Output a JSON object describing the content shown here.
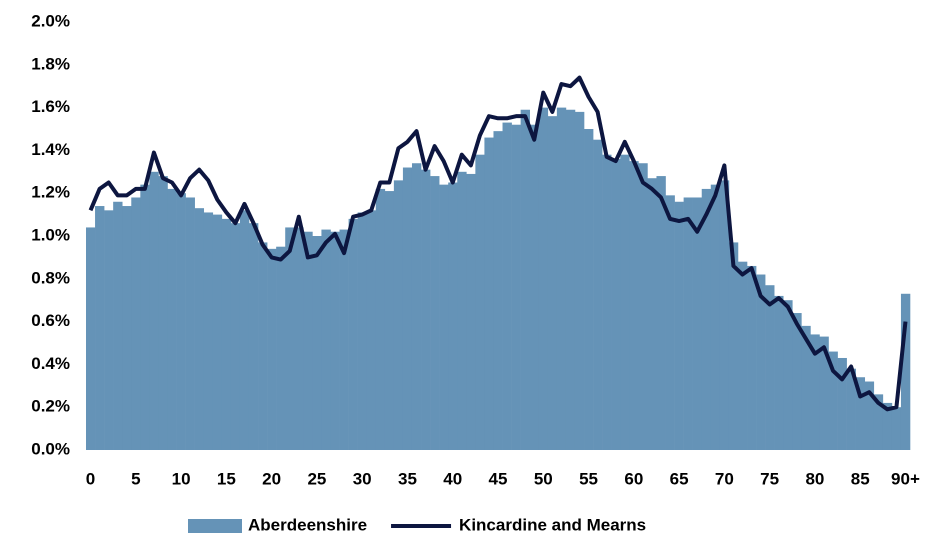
{
  "chart_data": {
    "type": "bar-line",
    "categories": [
      "0",
      null,
      null,
      null,
      null,
      "5",
      null,
      null,
      null,
      null,
      "10",
      null,
      null,
      null,
      null,
      "15",
      null,
      null,
      null,
      null,
      "20",
      null,
      null,
      null,
      null,
      "25",
      null,
      null,
      null,
      null,
      "30",
      null,
      null,
      null,
      null,
      "35",
      null,
      null,
      null,
      null,
      "40",
      null,
      null,
      null,
      null,
      "45",
      null,
      null,
      null,
      null,
      "50",
      null,
      null,
      null,
      null,
      "55",
      null,
      null,
      null,
      null,
      "60",
      null,
      null,
      null,
      null,
      "65",
      null,
      null,
      null,
      null,
      "70",
      null,
      null,
      null,
      null,
      "75",
      null,
      null,
      null,
      null,
      "80",
      null,
      null,
      null,
      null,
      "85",
      null,
      null,
      null,
      null,
      "90+"
    ],
    "series": [
      {
        "name": "Aberdeenshire",
        "type": "bar",
        "color": "#6593b7",
        "values": [
          1.04,
          1.14,
          1.12,
          1.16,
          1.14,
          1.18,
          1.24,
          1.3,
          1.28,
          1.22,
          1.2,
          1.18,
          1.13,
          1.11,
          1.1,
          1.08,
          1.06,
          1.12,
          1.06,
          0.97,
          0.94,
          0.95,
          1.04,
          1.04,
          1.02,
          1.0,
          1.03,
          1.02,
          1.03,
          1.08,
          1.11,
          1.12,
          1.22,
          1.21,
          1.26,
          1.32,
          1.34,
          1.31,
          1.28,
          1.24,
          1.25,
          1.3,
          1.29,
          1.38,
          1.46,
          1.49,
          1.53,
          1.52,
          1.59,
          1.52,
          1.6,
          1.56,
          1.6,
          1.59,
          1.58,
          1.5,
          1.45,
          1.38,
          1.36,
          1.38,
          1.35,
          1.34,
          1.27,
          1.28,
          1.19,
          1.16,
          1.18,
          1.18,
          1.22,
          1.24,
          1.26,
          0.97,
          0.88,
          0.86,
          0.82,
          0.77,
          0.72,
          0.7,
          0.64,
          0.58,
          0.54,
          0.53,
          0.46,
          0.43,
          0.38,
          0.34,
          0.32,
          0.26,
          0.22,
          0.2,
          0.73
        ]
      },
      {
        "name": "Kincardine and Mearns",
        "type": "line",
        "color": "#0d1640",
        "values": [
          1.12,
          1.22,
          1.25,
          1.19,
          1.19,
          1.22,
          1.22,
          1.39,
          1.27,
          1.25,
          1.19,
          1.27,
          1.31,
          1.26,
          1.17,
          1.11,
          1.06,
          1.15,
          1.06,
          0.96,
          0.9,
          0.89,
          0.93,
          1.09,
          0.9,
          0.91,
          0.97,
          1.01,
          0.92,
          1.09,
          1.1,
          1.12,
          1.25,
          1.25,
          1.41,
          1.44,
          1.49,
          1.31,
          1.42,
          1.35,
          1.25,
          1.38,
          1.33,
          1.47,
          1.56,
          1.55,
          1.55,
          1.56,
          1.56,
          1.45,
          1.67,
          1.58,
          1.71,
          1.7,
          1.74,
          1.65,
          1.58,
          1.37,
          1.35,
          1.44,
          1.35,
          1.25,
          1.22,
          1.18,
          1.08,
          1.07,
          1.08,
          1.02,
          1.1,
          1.19,
          1.33,
          0.86,
          0.82,
          0.85,
          0.72,
          0.68,
          0.71,
          0.67,
          0.59,
          0.52,
          0.45,
          0.48,
          0.37,
          0.33,
          0.39,
          0.25,
          0.27,
          0.22,
          0.19,
          0.2,
          0.6
        ]
      }
    ],
    "ylim": [
      0,
      2.0
    ],
    "yticks": [
      {
        "value": 0,
        "label": "0.0%"
      },
      {
        "value": 0.2,
        "label": "0.2%"
      },
      {
        "value": 0.4,
        "label": "0.4%"
      },
      {
        "value": 0.6,
        "label": "0.6%"
      },
      {
        "value": 0.8,
        "label": "0.8%"
      },
      {
        "value": 1.0,
        "label": "1.0%"
      },
      {
        "value": 1.2,
        "label": "1.2%"
      },
      {
        "value": 1.4,
        "label": "1.4%"
      },
      {
        "value": 1.6,
        "label": "1.6%"
      },
      {
        "value": 1.8,
        "label": "1.8%"
      },
      {
        "value": 2.0,
        "label": "2.0%"
      }
    ],
    "legend": "bottom"
  }
}
